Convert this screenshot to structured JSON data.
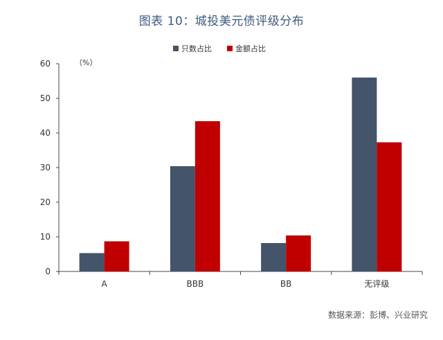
{
  "chart_data": {
    "type": "bar",
    "title": "图表 10：城投美元债评级分布",
    "unit_label": "（%）",
    "categories": [
      "A",
      "BBB",
      "BB",
      "无评级"
    ],
    "series": [
      {
        "name": "只数占比",
        "values": [
          5.3,
          30.4,
          8.2,
          56.0
        ],
        "color": "#44546a"
      },
      {
        "name": "金额占比",
        "values": [
          8.7,
          43.4,
          10.4,
          37.3
        ],
        "color": "#c00000"
      }
    ],
    "ylim": [
      0,
      60
    ],
    "yticks": [
      0,
      10,
      20,
      30,
      40,
      50,
      60
    ],
    "grid": false,
    "legend_position": "top-center",
    "source": "数据来源：彭博、兴业研究"
  }
}
